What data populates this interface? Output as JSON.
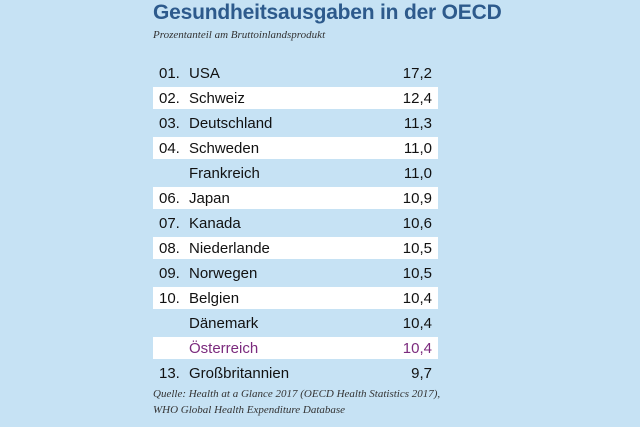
{
  "title": "Gesundheitsausgaben in der OECD",
  "subtitle": "Prozentanteil am Bruttoinlandsprodukt",
  "source_line1": "Quelle: Health at a Glance 2017 (OECD Health Statistics 2017),",
  "source_line2": "WHO Global Health Expenditure Database",
  "colors": {
    "title": "#2d5a8c",
    "background": "#c6e2f4",
    "highlight": "#7b2a7d"
  },
  "chart_data": {
    "type": "table",
    "title": "Gesundheitsausgaben in der OECD",
    "subtitle": "Prozentanteil am Bruttoinlandsprodukt",
    "rows": [
      {
        "rank": "01.",
        "country": "USA",
        "value": "17,2"
      },
      {
        "rank": "02.",
        "country": "Schweiz",
        "value": "12,4"
      },
      {
        "rank": "03.",
        "country": "Deutschland",
        "value": "11,3"
      },
      {
        "rank": "04.",
        "country": "Schweden",
        "value": "11,0"
      },
      {
        "rank": "",
        "country": "Frankreich",
        "value": "11,0"
      },
      {
        "rank": "06.",
        "country": "Japan",
        "value": "10,9"
      },
      {
        "rank": "07.",
        "country": "Kanada",
        "value": "10,6"
      },
      {
        "rank": "08.",
        "country": "Niederlande",
        "value": "10,5"
      },
      {
        "rank": "09.",
        "country": "Norwegen",
        "value": "10,5"
      },
      {
        "rank": "10.",
        "country": "Belgien",
        "value": "10,4"
      },
      {
        "rank": "",
        "country": "Dänemark",
        "value": "10,4"
      },
      {
        "rank": "",
        "country": "Österreich",
        "value": "10,4",
        "highlight": true
      },
      {
        "rank": "13.",
        "country": "Großbritannien",
        "value": "9,7"
      }
    ],
    "values": [
      17.2,
      12.4,
      11.3,
      11.0,
      11.0,
      10.9,
      10.6,
      10.5,
      10.5,
      10.4,
      10.4,
      10.4,
      9.7
    ]
  }
}
